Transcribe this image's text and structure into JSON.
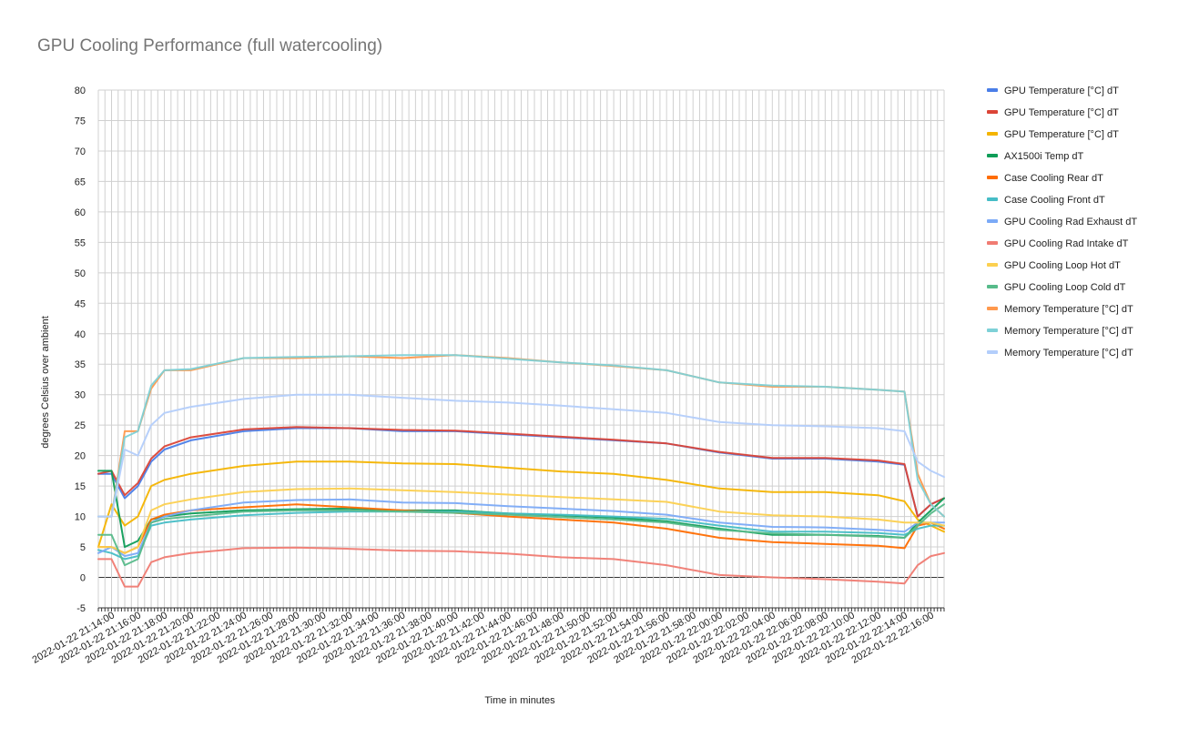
{
  "chart_data": {
    "type": "line",
    "title": "GPU Cooling Performance (full watercooling)",
    "xlabel": "Time in minutes",
    "ylabel": "degrees Celsius over ambient",
    "ylim": [
      -5,
      80
    ],
    "yticks": [
      -5,
      0,
      5,
      10,
      15,
      20,
      25,
      30,
      35,
      40,
      45,
      50,
      55,
      60,
      65,
      70,
      75,
      80
    ],
    "xlim": [
      "2022-01-22 21:13",
      "2022-01-22 22:17"
    ],
    "xtick_labels": [
      "2022-01-22 21:14:00",
      "2022-01-22 21:16:00",
      "2022-01-22 21:18:00",
      "2022-01-22 21:20:00",
      "2022-01-22 21:22:00",
      "2022-01-22 21:24:00",
      "2022-01-22 21:26:00",
      "2022-01-22 21:28:00",
      "2022-01-22 21:30:00",
      "2022-01-22 21:32:00",
      "2022-01-22 21:34:00",
      "2022-01-22 21:36:00",
      "2022-01-22 21:38:00",
      "2022-01-22 21:40:00",
      "2022-01-22 21:42:00",
      "2022-01-22 21:44:00",
      "2022-01-22 21:46:00",
      "2022-01-22 21:48:00",
      "2022-01-22 21:50:00",
      "2022-01-22 21:52:00",
      "2022-01-22 21:54:00",
      "2022-01-22 21:56:00",
      "2022-01-22 21:58:00",
      "2022-01-22 22:00:00",
      "2022-01-22 22:02:00",
      "2022-01-22 22:04:00",
      "2022-01-22 22:06:00",
      "2022-01-22 22:08:00",
      "2022-01-22 22:10:00",
      "2022-01-22 22:12:00",
      "2022-01-22 22:14:00",
      "2022-01-22 22:16:00"
    ],
    "grid": true,
    "legend_position": "right",
    "x": [
      "21:13",
      "21:14",
      "21:15",
      "21:16",
      "21:17",
      "21:18",
      "21:20",
      "21:24",
      "21:28",
      "21:32",
      "21:36",
      "21:40",
      "21:44",
      "21:48",
      "21:52",
      "21:56",
      "22:00",
      "22:04",
      "22:08",
      "22:12",
      "22:14",
      "22:15",
      "22:16",
      "22:17"
    ],
    "series": [
      {
        "name": "GPU Temperature [°C] dT",
        "color": "#4a7ee8",
        "values": [
          17,
          17,
          13,
          15,
          19,
          21,
          22.5,
          24,
          24.5,
          24.5,
          24,
          24,
          23.5,
          23,
          22.5,
          22,
          20.5,
          19.5,
          19.5,
          19,
          18.5,
          10,
          12,
          13
        ]
      },
      {
        "name": "GPU Temperature [°C] dT",
        "color": "#db4437",
        "values": [
          17,
          17.5,
          13.5,
          15.5,
          19.5,
          21.5,
          23,
          24.3,
          24.7,
          24.5,
          24.2,
          24.1,
          23.6,
          23.1,
          22.6,
          22,
          20.6,
          19.6,
          19.6,
          19.2,
          18.6,
          10,
          12,
          13
        ]
      },
      {
        "name": "GPU Temperature [°C] dT",
        "color": "#f4b400",
        "values": [
          5,
          12,
          8.5,
          10,
          15,
          16,
          17,
          18.3,
          19,
          19,
          18.7,
          18.6,
          18,
          17.4,
          17,
          16,
          14.6,
          14,
          14,
          13.5,
          12.5,
          9.5,
          8.5,
          7.5
        ]
      },
      {
        "name": "AX1500i Temp dT",
        "color": "#0f9d58",
        "values": [
          17.5,
          17.5,
          5,
          6,
          9.5,
          10,
          10.5,
          11,
          11.2,
          11.3,
          11,
          11,
          10.5,
          10.2,
          9.8,
          9.2,
          8,
          7,
          7,
          6.8,
          6.5,
          9,
          11,
          13
        ]
      },
      {
        "name": "Case Cooling Rear dT",
        "color": "#ff6d01",
        "values": [
          5,
          5,
          4,
          5,
          9.5,
          10.3,
          11,
          11.5,
          12,
          11.5,
          11,
          10.6,
          10,
          9.5,
          9,
          8,
          6.5,
          5.8,
          5.5,
          5.2,
          4.8,
          8.5,
          9,
          8
        ]
      },
      {
        "name": "Case Cooling Front dT",
        "color": "#46bdc6",
        "values": [
          4.5,
          4,
          3,
          3.5,
          8.5,
          9,
          9.5,
          10.2,
          10.6,
          10.8,
          10.8,
          10.8,
          10.5,
          10.3,
          10,
          9.6,
          8.5,
          7.5,
          7.5,
          7.3,
          7,
          8,
          8.5,
          8.5
        ]
      },
      {
        "name": "GPU Cooling Rad Exhaust dT",
        "color": "#7baaf7",
        "values": [
          4,
          5,
          3.5,
          4,
          9,
          10,
          11,
          12.3,
          12.7,
          12.8,
          12.3,
          12.2,
          11.7,
          11.3,
          10.9,
          10.3,
          9,
          8.3,
          8.2,
          7.8,
          7.5,
          9,
          9,
          9
        ]
      },
      {
        "name": "GPU Cooling Rad Intake dT",
        "color": "#f07b72",
        "values": [
          3,
          3,
          -1.5,
          -1.5,
          2.5,
          3.3,
          4,
          4.8,
          4.9,
          4.7,
          4.4,
          4.3,
          3.9,
          3.3,
          3,
          2,
          0.4,
          0,
          -0.3,
          -0.7,
          -1,
          2,
          3.5,
          4
        ]
      },
      {
        "name": "GPU Cooling Loop Hot dT",
        "color": "#fcd04f",
        "values": [
          5,
          5,
          4,
          5,
          11,
          12,
          12.8,
          14,
          14.5,
          14.6,
          14.3,
          14,
          13.6,
          13.2,
          12.8,
          12.4,
          10.8,
          10.2,
          10,
          9.5,
          9,
          9,
          9,
          8.5
        ]
      },
      {
        "name": "GPU Cooling Loop Cold dT",
        "color": "#57bb8a",
        "values": [
          7,
          7,
          2,
          3,
          9,
          9.6,
          10,
          10.8,
          11,
          11,
          10.8,
          10.6,
          10.3,
          9.9,
          9.5,
          9,
          7.8,
          7.2,
          7,
          6.7,
          6.5,
          8.5,
          10.5,
          12
        ]
      },
      {
        "name": "Memory Temperature [°C] dT",
        "color": "#ff994d",
        "values": [
          10,
          10,
          24,
          24,
          31,
          34,
          34,
          36,
          36,
          36.3,
          36,
          36.5,
          36,
          35.3,
          34.7,
          34,
          32,
          31.3,
          31.3,
          30.8,
          30.5,
          17,
          12,
          10
        ]
      },
      {
        "name": "Memory Temperature [°C] dT",
        "color": "#7ed1d7",
        "values": [
          10,
          10,
          23,
          24,
          31.5,
          34,
          34.2,
          36,
          36.2,
          36.3,
          36.5,
          36.5,
          35.9,
          35.3,
          34.8,
          34,
          32,
          31.5,
          31.3,
          30.8,
          30.5,
          16,
          12,
          10
        ]
      },
      {
        "name": "Memory Temperature [°C] dT",
        "color": "#b3cefb",
        "values": [
          10,
          10,
          21,
          20,
          25,
          27,
          28,
          29.3,
          30,
          30,
          29.5,
          29,
          28.7,
          28.2,
          27.6,
          27,
          25.5,
          25,
          24.8,
          24.5,
          24,
          19,
          17.5,
          16.5
        ]
      }
    ]
  }
}
